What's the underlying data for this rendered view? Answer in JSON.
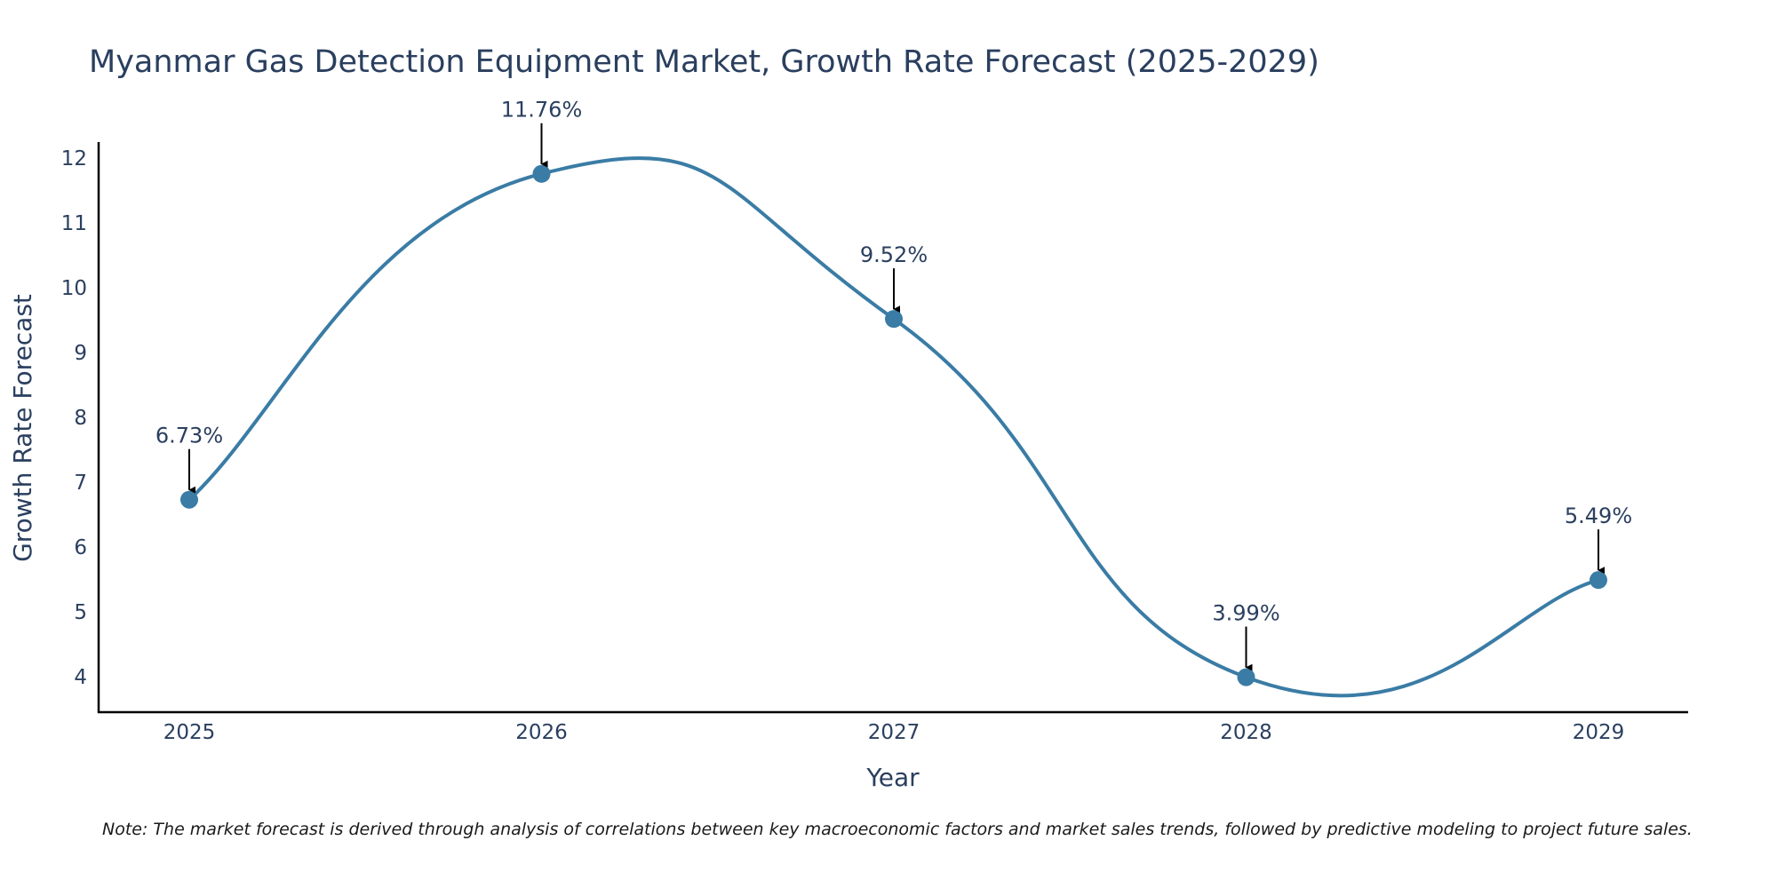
{
  "chart_data": {
    "type": "line",
    "title": "Myanmar Gas Detection Equipment Market, Growth Rate Forecast (2025-2029)",
    "xlabel": "Year",
    "ylabel": "Growth Rate Forecast",
    "categories": [
      "2025",
      "2026",
      "2027",
      "2028",
      "2029"
    ],
    "values": [
      6.73,
      11.76,
      9.52,
      3.99,
      5.49
    ],
    "labels": [
      "6.73%",
      "11.76%",
      "9.52%",
      "3.99%",
      "5.49%"
    ],
    "y_ticks": [
      "4",
      "5",
      "6",
      "7",
      "8",
      "9",
      "10",
      "11",
      "12"
    ],
    "ylim": [
      3.45,
      12.25
    ],
    "line_color": "#3a7ca5",
    "marker_color": "#3a7ca5",
    "grid": false,
    "note": "Note: The market forecast is derived through analysis of correlations between key macroeconomic factors and market sales trends, followed by predictive modeling to project future sales."
  }
}
